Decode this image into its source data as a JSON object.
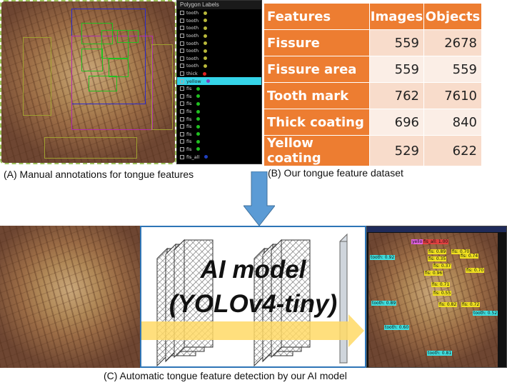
{
  "panel_a": {
    "caption": "(A) Manual annotations for tongue features",
    "polygon_panel_title": "Polygon Labels",
    "labels": [
      {
        "text": "tooth",
        "color": "#b9b93a"
      },
      {
        "text": "tooth",
        "color": "#b9b93a"
      },
      {
        "text": "tooth",
        "color": "#b9b93a"
      },
      {
        "text": "tooth",
        "color": "#b9b93a"
      },
      {
        "text": "tooth",
        "color": "#b9b93a"
      },
      {
        "text": "tooth",
        "color": "#b9b93a"
      },
      {
        "text": "tooth",
        "color": "#b9b93a"
      },
      {
        "text": "tooth",
        "color": "#b9b93a"
      },
      {
        "text": "thick",
        "color": "#e02020"
      },
      {
        "text": "yellow",
        "color": "#8040c0",
        "selected": true
      },
      {
        "text": "fis",
        "color": "#20c020"
      },
      {
        "text": "fis",
        "color": "#20c020"
      },
      {
        "text": "fis",
        "color": "#20c020"
      },
      {
        "text": "fis",
        "color": "#20c020"
      },
      {
        "text": "fis",
        "color": "#20c020"
      },
      {
        "text": "fis",
        "color": "#20c020"
      },
      {
        "text": "fis",
        "color": "#20c020"
      },
      {
        "text": "fis",
        "color": "#20c020"
      },
      {
        "text": "fis",
        "color": "#20c020"
      },
      {
        "text": "fis_all",
        "color": "#2040c0"
      }
    ]
  },
  "panel_b": {
    "caption": "(B) Our tongue feature dataset",
    "headers": [
      "Features",
      "Images",
      "Objects"
    ],
    "rows": [
      {
        "feature": "Fissure",
        "images": "559",
        "objects": "2678"
      },
      {
        "feature": "Fissure area",
        "images": "559",
        "objects": "559"
      },
      {
        "feature": "Tooth mark",
        "images": "762",
        "objects": "7610"
      },
      {
        "feature": "Thick coating",
        "images": "696",
        "objects": "840"
      },
      {
        "feature": "Yellow coating",
        "images": "529",
        "objects": "622"
      }
    ]
  },
  "panel_c": {
    "caption": "(C) Automatic tongue feature detection by our AI model",
    "model_line1": "AI model",
    "model_line2": "(YOLOv4-tiny)",
    "detections": [
      {
        "text": "tooth: 0.92",
        "color": "#40e0e0"
      },
      {
        "text": "fis: 0.89",
        "color": "#f0e020"
      },
      {
        "text": "fis: 0.70",
        "color": "#f0e020"
      },
      {
        "text": "fis: 0.35",
        "color": "#f0e020"
      },
      {
        "text": "fis: 0.74",
        "color": "#f0e020"
      },
      {
        "text": "fis: 0.37",
        "color": "#f0e020"
      },
      {
        "text": "fis: 0.96",
        "color": "#f0e020"
      },
      {
        "text": "fis: 0.70",
        "color": "#f0e020"
      },
      {
        "text": "fis: 0.71",
        "color": "#f0e020"
      },
      {
        "text": "fis: 0.55",
        "color": "#f0e020"
      },
      {
        "text": "tooth: 0.89",
        "color": "#40e0e0"
      },
      {
        "text": "fis: 0.82",
        "color": "#f0e020"
      },
      {
        "text": "fis: 0.72",
        "color": "#f0e020"
      },
      {
        "text": "tooth: 0.52",
        "color": "#40e0e0"
      },
      {
        "text": "tooth: 0.60",
        "color": "#40e0e0"
      },
      {
        "text": "tooth: 0.81",
        "color": "#40e0e0"
      },
      {
        "text": "yello",
        "color": "#e060e0"
      },
      {
        "text": "fis_all: 1.00",
        "color": "#e04040"
      }
    ]
  },
  "colors": {
    "table_header": "#ed7d31",
    "arrow": "#5b9bd5",
    "ai_border": "#2e75b6",
    "flow_arrow": "#ffd966"
  }
}
